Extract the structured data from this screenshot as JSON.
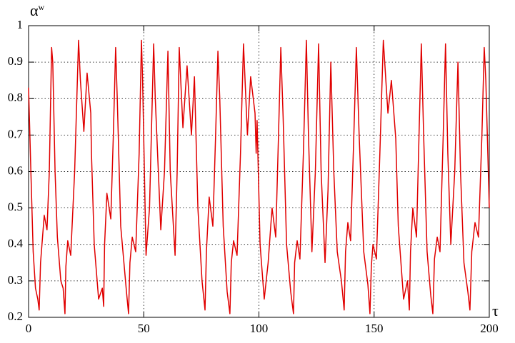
{
  "chart_data": {
    "type": "line",
    "ylabel": "α",
    "ylabel_superscript": "w",
    "xlabel": "τ",
    "x": [
      0,
      1,
      2,
      3,
      4,
      4.6,
      5.2,
      6.8,
      8,
      9,
      10,
      10.5,
      11.5,
      12.5,
      14,
      15,
      15.8,
      16.2,
      17,
      18.3,
      20,
      21.7,
      22.5,
      24,
      25.4,
      27,
      27.3,
      28.5,
      30.4,
      32,
      32.6,
      33,
      34,
      35.7,
      36.8,
      37.8,
      38.5,
      40,
      42.5,
      43.4,
      44,
      45,
      46.5,
      48,
      49,
      49.5,
      51,
      52.5,
      54.3,
      55,
      57.4,
      59,
      60.5,
      61.5,
      63.6,
      64.5,
      65.4,
      67,
      68.8,
      70.7,
      72,
      73.5,
      75.3,
      76.6,
      77.2,
      78.4,
      80,
      81.2,
      82.2,
      83,
      84.5,
      86.2,
      87.4,
      88,
      89,
      90.5,
      92,
      93.3,
      95,
      96.4,
      98.3,
      98.8,
      99.2,
      100.5,
      102.3,
      104,
      105.7,
      107.3,
      108.5,
      109.5,
      110.5,
      112,
      113.8,
      115,
      115.5,
      116.6,
      117.8,
      119.3,
      120.6,
      121.5,
      123,
      124.5,
      125.9,
      127,
      128.7,
      130,
      131.2,
      132.5,
      134,
      135.8,
      137,
      137.6,
      138.6,
      139.8,
      141.2,
      142.3,
      143.5,
      145.5,
      147.3,
      148.2,
      148.8,
      149.5,
      151,
      152.5,
      154,
      156,
      157.5,
      159.4,
      160.5,
      162.8,
      164.5,
      165.3,
      165.8,
      166.8,
      168.4,
      169.5,
      170.5,
      171.5,
      173,
      174.6,
      175.5,
      176.2,
      177.4,
      178.6,
      180,
      181,
      182,
      183.3,
      185,
      186.4,
      187.5,
      189,
      190.7,
      191.6,
      192.4,
      193.8,
      195.3,
      196.8,
      197.8,
      198.5,
      200
    ],
    "series": [
      {
        "color": "#e00000",
        "values": [
          0.83,
          0.6,
          0.38,
          0.28,
          0.25,
          0.22,
          0.35,
          0.48,
          0.44,
          0.6,
          0.94,
          0.9,
          0.6,
          0.42,
          0.3,
          0.28,
          0.21,
          0.34,
          0.41,
          0.37,
          0.6,
          0.96,
          0.85,
          0.71,
          0.87,
          0.76,
          0.65,
          0.4,
          0.25,
          0.28,
          0.23,
          0.4,
          0.54,
          0.47,
          0.7,
          0.94,
          0.8,
          0.45,
          0.27,
          0.21,
          0.35,
          0.42,
          0.38,
          0.65,
          0.96,
          0.85,
          0.37,
          0.5,
          0.95,
          0.8,
          0.44,
          0.6,
          0.93,
          0.6,
          0.37,
          0.6,
          0.94,
          0.72,
          0.89,
          0.7,
          0.86,
          0.5,
          0.3,
          0.22,
          0.38,
          0.53,
          0.45,
          0.7,
          0.93,
          0.8,
          0.45,
          0.27,
          0.21,
          0.35,
          0.41,
          0.37,
          0.65,
          0.95,
          0.7,
          0.86,
          0.76,
          0.65,
          0.74,
          0.4,
          0.25,
          0.35,
          0.5,
          0.42,
          0.7,
          0.94,
          0.75,
          0.4,
          0.27,
          0.21,
          0.35,
          0.41,
          0.36,
          0.65,
          0.96,
          0.7,
          0.38,
          0.6,
          0.95,
          0.6,
          0.35,
          0.55,
          0.9,
          0.6,
          0.38,
          0.3,
          0.22,
          0.38,
          0.46,
          0.41,
          0.7,
          0.94,
          0.7,
          0.38,
          0.29,
          0.21,
          0.34,
          0.4,
          0.36,
          0.65,
          0.96,
          0.76,
          0.85,
          0.69,
          0.45,
          0.25,
          0.3,
          0.22,
          0.38,
          0.5,
          0.42,
          0.7,
          0.95,
          0.7,
          0.38,
          0.26,
          0.21,
          0.36,
          0.42,
          0.38,
          0.7,
          0.95,
          0.65,
          0.4,
          0.6,
          0.9,
          0.6,
          0.35,
          0.27,
          0.22,
          0.38,
          0.46,
          0.42,
          0.7,
          0.94,
          0.85,
          0.5
        ]
      }
    ],
    "xlim": [
      0,
      200
    ],
    "xticks": [
      0,
      50,
      100,
      150,
      200
    ],
    "ylim": [
      0.2,
      1
    ],
    "yticks": [
      0.2,
      0.3,
      0.4,
      0.5,
      0.6,
      0.7,
      0.8,
      0.9,
      1
    ],
    "grid": true
  }
}
